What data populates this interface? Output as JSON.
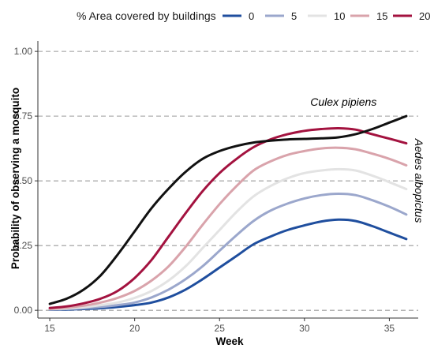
{
  "chart_data": {
    "type": "line",
    "xlabel": "Week",
    "ylabel": "Probability of observing a mosquito",
    "xlim": [
      14.3,
      36.7
    ],
    "ylim": [
      -0.03,
      1.04
    ],
    "x_ticks": [
      15,
      20,
      25,
      30,
      35
    ],
    "y_ticks": [
      0.0,
      0.25,
      0.5,
      0.75,
      1.0
    ],
    "y_tick_labels": [
      "0.00",
      "0.25",
      "0.50",
      "0.75",
      "1.00"
    ],
    "grid": "horizontal dashed",
    "legend": {
      "title": "% Area covered by buildings",
      "placement": "top",
      "entries": [
        {
          "label": "0",
          "color": "#1f4e9e"
        },
        {
          "label": "5",
          "color": "#9ba7cc"
        },
        {
          "label": "10",
          "color": "#e3e3e3"
        },
        {
          "label": "15",
          "color": "#d9a3ab"
        },
        {
          "label": "20",
          "color": "#a3123f"
        }
      ]
    },
    "annotations": [
      {
        "text": "Culex pipiens",
        "x": 32.3,
        "y": 0.79,
        "orientation": "horizontal"
      },
      {
        "text": "Aedes albopictus",
        "x": 36.7,
        "y": 0.5,
        "orientation": "vertical"
      }
    ],
    "x": [
      15,
      16,
      17,
      18,
      19,
      20,
      21,
      22,
      23,
      24,
      25,
      26,
      27,
      28,
      29,
      30,
      31,
      32,
      33,
      34,
      35,
      36
    ],
    "series": [
      {
        "name": "0",
        "color": "#1f4e9e",
        "values": [
          0.002,
          0.003,
          0.005,
          0.008,
          0.013,
          0.02,
          0.03,
          0.05,
          0.08,
          0.12,
          0.165,
          0.21,
          0.255,
          0.285,
          0.31,
          0.328,
          0.343,
          0.35,
          0.345,
          0.325,
          0.3,
          0.275
        ]
      },
      {
        "name": "5",
        "color": "#9ba7cc",
        "values": [
          0.003,
          0.005,
          0.008,
          0.013,
          0.02,
          0.03,
          0.05,
          0.08,
          0.12,
          0.17,
          0.23,
          0.29,
          0.345,
          0.385,
          0.412,
          0.432,
          0.445,
          0.45,
          0.445,
          0.425,
          0.4,
          0.37
        ]
      },
      {
        "name": "10",
        "color": "#e3e3e3",
        "values": [
          0.004,
          0.007,
          0.012,
          0.02,
          0.03,
          0.048,
          0.075,
          0.115,
          0.17,
          0.24,
          0.31,
          0.38,
          0.44,
          0.48,
          0.51,
          0.53,
          0.54,
          0.545,
          0.54,
          0.52,
          0.495,
          0.468
        ]
      },
      {
        "name": "15",
        "color": "#d9a3ab",
        "values": [
          0.006,
          0.01,
          0.018,
          0.03,
          0.048,
          0.075,
          0.115,
          0.17,
          0.245,
          0.33,
          0.41,
          0.48,
          0.54,
          0.575,
          0.6,
          0.615,
          0.625,
          0.628,
          0.622,
          0.605,
          0.585,
          0.56
        ]
      },
      {
        "name": "20",
        "color": "#a3123f",
        "values": [
          0.009,
          0.015,
          0.027,
          0.045,
          0.075,
          0.125,
          0.195,
          0.285,
          0.375,
          0.46,
          0.53,
          0.585,
          0.63,
          0.66,
          0.68,
          0.693,
          0.7,
          0.703,
          0.698,
          0.68,
          0.663,
          0.645
        ]
      },
      {
        "name": "Culex pipiens",
        "color": "#111111",
        "values": [
          0.025,
          0.045,
          0.08,
          0.135,
          0.215,
          0.305,
          0.395,
          0.47,
          0.535,
          0.585,
          0.615,
          0.635,
          0.648,
          0.655,
          0.66,
          0.662,
          0.664,
          0.668,
          0.68,
          0.7,
          0.725,
          0.75
        ]
      }
    ]
  }
}
